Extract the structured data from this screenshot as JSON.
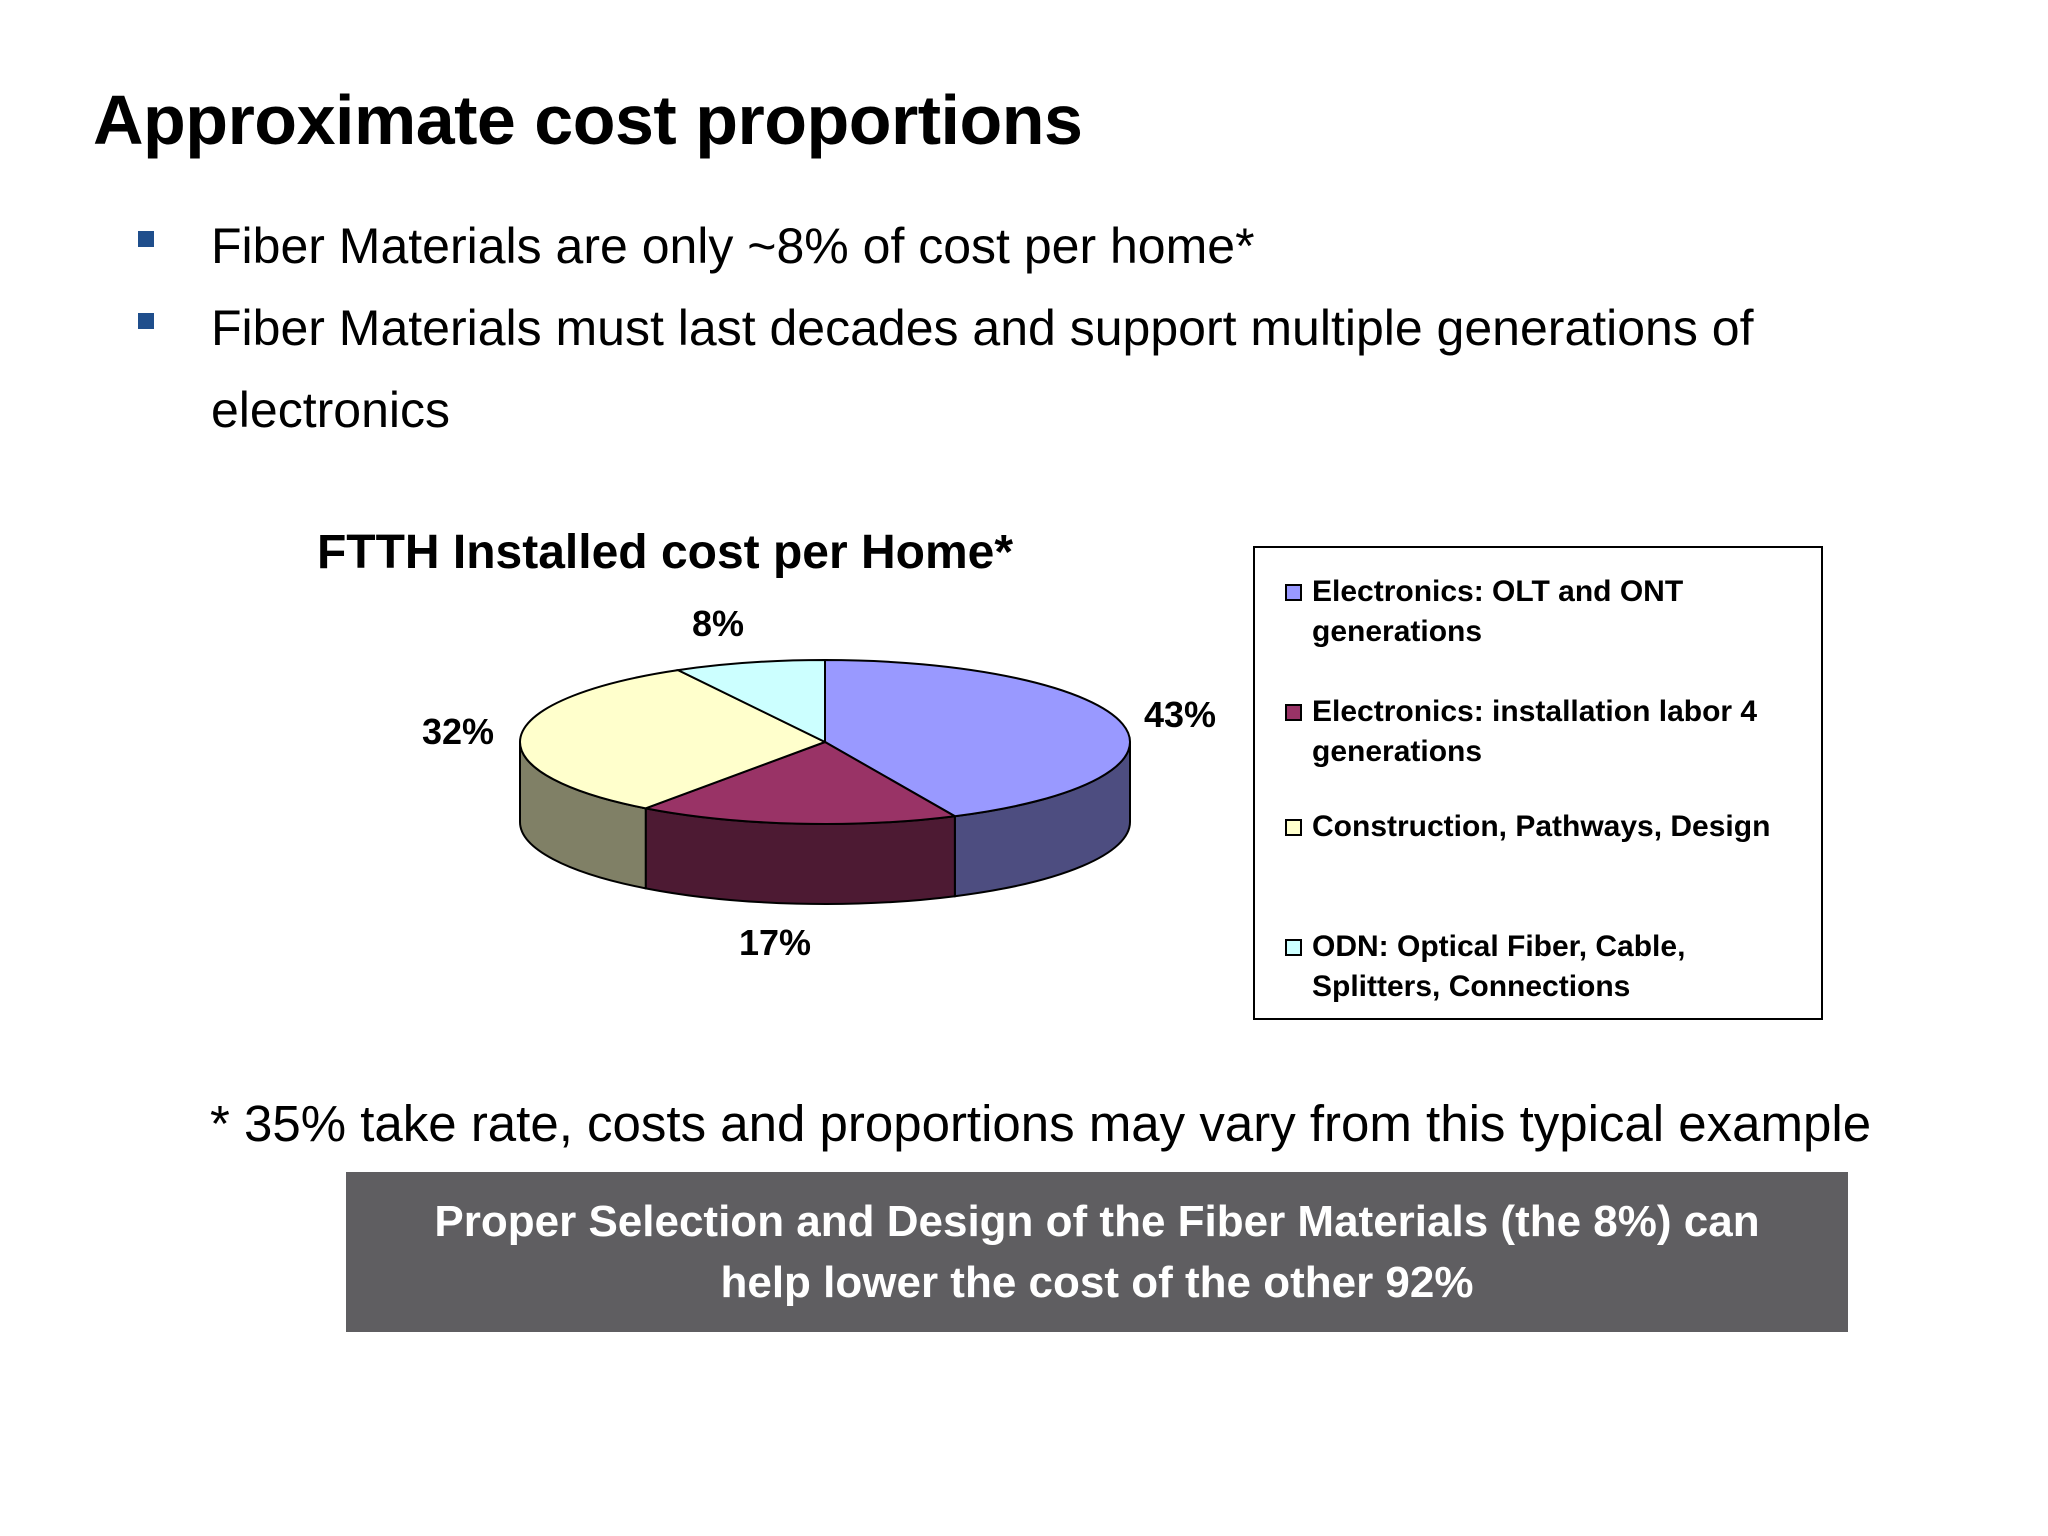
{
  "slide": {
    "title": "Approximate cost proportions",
    "bullets": [
      "Fiber Materials are only ~8% of cost per home*",
      "Fiber Materials must last decades and support multiple generations of electronics"
    ],
    "footnote": "* 35% take rate, costs and proportions may vary from this typical example",
    "callout": "Proper Selection and Design of the Fiber Materials (the 8%) can help lower the cost of the other 92%"
  },
  "chart_data": {
    "type": "pie",
    "title": "FTTH Installed cost per Home*",
    "three_d": true,
    "legend_position": "right",
    "categories": [
      "Electronics: OLT and ONT generations",
      "Electronics:  installation labor 4 generations",
      "Construction, Pathways, Design",
      "ODN: Optical Fiber, Cable, Splitters, Connections"
    ],
    "values": [
      43,
      17,
      32,
      8
    ],
    "data_labels": [
      "43%",
      "17%",
      "32%",
      "8%"
    ],
    "colors": [
      "#9999ff",
      "#993366",
      "#ffffcc",
      "#ccffff"
    ]
  }
}
